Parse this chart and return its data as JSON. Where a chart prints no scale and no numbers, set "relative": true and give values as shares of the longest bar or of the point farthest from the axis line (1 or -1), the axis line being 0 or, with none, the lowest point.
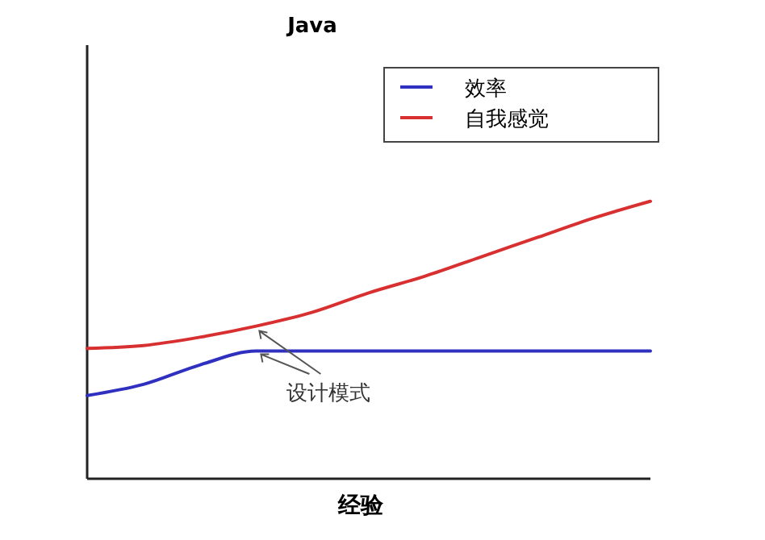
{
  "chart_data": {
    "type": "line",
    "title": "Java",
    "xlabel": "经验",
    "relative": true,
    "legend": "top right",
    "categories": [
      null,
      null,
      null,
      null,
      null,
      null,
      null,
      null,
      null,
      null,
      null
    ],
    "series": [
      {
        "name": "效率",
        "color": "#3030c0",
        "values": [
          0.3,
          0.34,
          0.41,
          0.46,
          0.46,
          0.46,
          0.46,
          0.46,
          0.46,
          0.46,
          0.46
        ]
      },
      {
        "name": "自我感觉",
        "color": "#d83030",
        "values": [
          0.47,
          0.48,
          0.51,
          0.55,
          0.6,
          0.67,
          0.73,
          0.8,
          0.87,
          0.94,
          1
        ]
      }
    ],
    "annotations": [
      "设计模式"
    ]
  }
}
